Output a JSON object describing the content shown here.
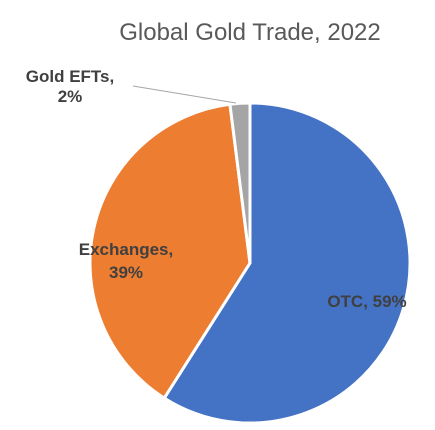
{
  "chart_data": {
    "type": "pie",
    "title": "Global Gold Trade, 2022",
    "slices": [
      {
        "label": "OTC",
        "value": 59,
        "color": "#4472C4",
        "label_text": "OTC, 59%"
      },
      {
        "label": "Exchanges",
        "value": 39,
        "color": "#ED7D31",
        "label_text_line1": "Exchanges,",
        "label_text_line2": "39%"
      },
      {
        "label": "Gold EFTs",
        "value": 2,
        "color": "#A5A5A5",
        "label_text_line1": "Gold EFTs,",
        "label_text_line2": "2%"
      }
    ],
    "legend": "none",
    "label_colors": {
      "otc": "#404040",
      "exchanges": "#404040",
      "efts": "#404040",
      "title": "#595959",
      "leader": "#A6A6A6"
    }
  }
}
